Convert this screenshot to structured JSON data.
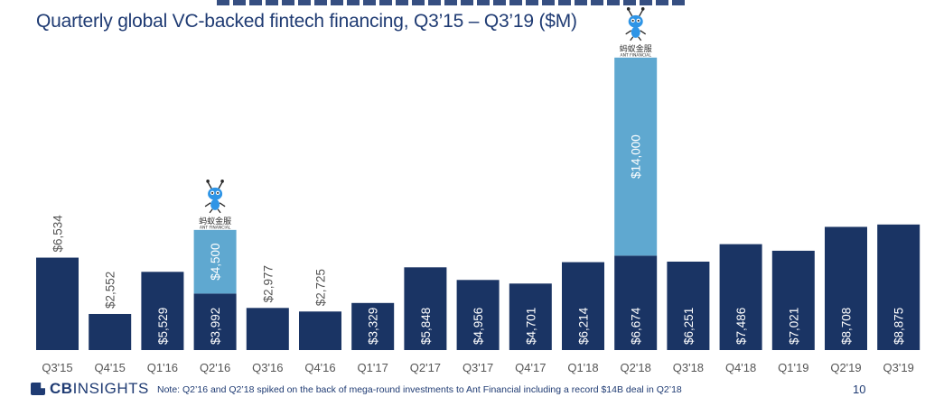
{
  "chart_data": {
    "type": "bar",
    "title": "Quarterly global VC-backed fintech financing, Q3’15 – Q3’19 ($M)",
    "categories": [
      "Q3'15",
      "Q4'15",
      "Q1'16",
      "Q2'16",
      "Q3'16",
      "Q4'16",
      "Q1'17",
      "Q2'17",
      "Q3'17",
      "Q4'17",
      "Q1'18",
      "Q2'18",
      "Q3'18",
      "Q4'18",
      "Q1'19",
      "Q2'19",
      "Q3'19"
    ],
    "series": [
      {
        "values": [
          6534,
          2552,
          5529,
          3992,
          2977,
          2725,
          3329,
          5848,
          4956,
          4701,
          6214,
          6674,
          6251,
          7486,
          7021,
          8708,
          8875
        ],
        "labels": [
          "$6,534",
          "$2,552",
          "$5,529",
          "$3,992",
          "$2,977",
          "$2,725",
          "$3,329",
          "$5,848",
          "$4,956",
          "$4,701",
          "$6,214",
          "$6,674",
          "$6,251",
          "$7,486",
          "$7,021",
          "$8,708",
          "$8,875"
        ]
      },
      {
        "values": [
          0,
          0,
          0,
          4500,
          0,
          0,
          0,
          0,
          0,
          0,
          0,
          14000,
          0,
          0,
          0,
          0,
          0
        ],
        "labels": [
          "",
          "",
          "",
          "$4,500",
          "",
          "",
          "",
          "",
          "",
          "",
          "",
          "$14,000",
          "",
          "",
          "",
          "",
          ""
        ]
      }
    ],
    "label_outside": [
      true,
      true,
      false,
      false,
      true,
      true,
      false,
      false,
      false,
      false,
      false,
      false,
      false,
      false,
      false,
      false,
      false
    ],
    "ylim": [
      0,
      22000
    ],
    "grid": false,
    "colors": {
      "base": "#1a3464",
      "highlight": "#5fa8d0",
      "outside_label": "#555555",
      "inside_label": "#ffffff",
      "axis_label": "#555555"
    },
    "annotations": [
      {
        "category": "Q2'16",
        "logo": "ant-financial-logo",
        "text_cn": "蚂蚁金服",
        "text_en": "ANT FINANCIAL"
      },
      {
        "category": "Q2'18",
        "logo": "ant-financial-logo",
        "text_cn": "蚂蚁金服",
        "text_en": "ANT FINANCIAL"
      }
    ]
  },
  "footer": {
    "brand_bold": "CB",
    "brand_rest": "INSIGHTS",
    "note": "Note: Q2’16 and Q2’18 spiked on the back of mega-round investments to Ant Financial including a record $14B deal in Q2’18",
    "page": "10"
  }
}
